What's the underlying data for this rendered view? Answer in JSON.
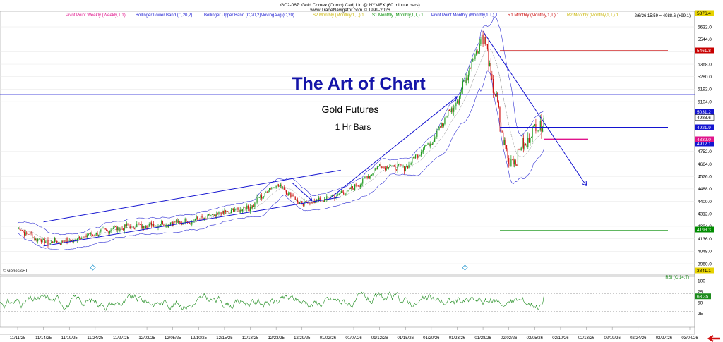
{
  "header": {
    "title_line1": "GC2-067:  Gold Comex (Comb) Cadj Liq @ NYMEX  (60 minute bars)",
    "title_line2": "www.TradeNavigator.com © 1999-2026",
    "last_bar": "2/6/26 15:59 = 4988.6 (+99.1)"
  },
  "legend": [
    {
      "label": "Pivot Point Weekly (Weekly,1,1)",
      "color": "#e0148c"
    },
    {
      "label": "Bollinger Lower Band (C,20,2)",
      "color": "#1414d0"
    },
    {
      "label": "Bollinger Upper Band (C,20,2)",
      "color": "#1414d0"
    },
    {
      "label": "MovingAvg (C,20)",
      "color": "#1414d0"
    },
    {
      "label": "S2 Monthly (Monthly,1,T,).1",
      "color": "#c8b400"
    },
    {
      "label": "S1 Monthly (Monthly,1,T,).1",
      "color": "#008c00"
    },
    {
      "label": "Pivot Point Monthly (Monthly,1,T,).1",
      "color": "#1414d0"
    },
    {
      "label": "R1 Monthly (Monthly,1,T,).1",
      "color": "#c80000"
    },
    {
      "label": "R2 Monthly (Monthly,1,T,).1",
      "color": "#c8b400"
    }
  ],
  "annotations": {
    "title": "The Art of Chart",
    "subtitle": "Gold Futures",
    "subtitle2": "1 Hr Bars",
    "brand": "© GenesisFT",
    "rsi_label": "RSI (C,14,T)"
  },
  "colors": {
    "title": "#1414a8",
    "trendline": "#1414d0",
    "r1": "#c80000",
    "s1": "#008c00",
    "s2": "#c8b400",
    "pivot_weekly": "#e0148c",
    "rsi": "#1e8c1e"
  },
  "chart_data": {
    "type": "candlestick",
    "ylim": [
      3900,
      5680
    ],
    "price_ticks": [
      3960,
      4048,
      4136,
      4224,
      4312,
      4400,
      4488,
      4576,
      4664,
      4752,
      5104,
      5192,
      5280,
      5368,
      5456,
      5544,
      5632
    ],
    "x_dates": [
      "11/11/25",
      "11/14/25",
      "11/19/25",
      "11/24/25",
      "11/27/25",
      "12/02/25",
      "12/05/25",
      "12/10/25",
      "12/15/25",
      "12/18/25",
      "12/23/25",
      "12/29/25",
      "01/02/26",
      "01/07/26",
      "01/12/26",
      "01/15/26",
      "01/20/26",
      "01/23/26",
      "01/28/26",
      "02/02/26",
      "02/05/26",
      "02/10/26",
      "02/13/26",
      "02/19/26",
      "02/24/26",
      "02/27/26",
      "03/04/26"
    ],
    "price_path": [
      [
        "11/11/25",
        4210
      ],
      [
        "11/14/25",
        4110
      ],
      [
        "11/19/25",
        4120
      ],
      [
        "11/24/25",
        4175
      ],
      [
        "11/27/25",
        4220
      ],
      [
        "12/02/25",
        4230
      ],
      [
        "12/05/25",
        4245
      ],
      [
        "12/10/25",
        4270
      ],
      [
        "12/15/25",
        4320
      ],
      [
        "12/18/25",
        4360
      ],
      [
        "12/23/25",
        4530
      ],
      [
        "12/29/25",
        4380
      ],
      [
        "01/02/26",
        4420
      ],
      [
        "01/07/26",
        4490
      ],
      [
        "01/12/26",
        4650
      ],
      [
        "01/15/26",
        4640
      ],
      [
        "01/20/26",
        4830
      ],
      [
        "01/23/26",
        5110
      ],
      [
        "01/28/26",
        5580
      ],
      [
        "02/02/26",
        4650
      ],
      [
        "02/05/26",
        4900
      ],
      [
        "02/06/26",
        4988.6
      ]
    ],
    "levels": [
      {
        "name": "R2 Monthly",
        "value": 5876.4,
        "color": "#c8b400"
      },
      {
        "name": "R1 Monthly",
        "value": 5461.8,
        "color": "#c80000"
      },
      {
        "name": "Last",
        "value": 4988.6,
        "color": "#000000"
      },
      {
        "name": "Upper Band",
        "value": 5031.2,
        "color": "#1414d0"
      },
      {
        "name": "Pivot Point Monthly",
        "value": 4921.9,
        "color": "#1414d0"
      },
      {
        "name": "MovingAvg",
        "value": 4912.1,
        "color": "#1414d0"
      },
      {
        "name": "Pivot Point Weekly",
        "value": 4839.0,
        "color": "#e0148c"
      },
      {
        "name": "S1 Monthly",
        "value": 4193.3,
        "color": "#008c00"
      },
      {
        "name": "S2 Monthly",
        "value": 3841.1,
        "color": "#c8b400"
      }
    ],
    "tag_labels": {
      "r2": "5876.4",
      "r1": "5461.8",
      "upper": "5031.2",
      "last": "4988.6",
      "pivot": "4921.9",
      "ma": "4912.1",
      "pivot_weekly": "4839.0",
      "s1": "4193.3",
      "s2": "3841.1"
    },
    "rsi": {
      "label": "RSI (C,14,T)",
      "ylim": [
        0,
        100
      ],
      "ticks": [
        25,
        50,
        75,
        100
      ],
      "overbought": 70,
      "oversold": 30,
      "last": 63.35,
      "last_label": "63.35"
    },
    "trendlines": [
      {
        "name": "channel-upper",
        "from": [
          "11/14/25",
          4255
        ],
        "to": [
          "01/05/26",
          4620
        ]
      },
      {
        "name": "channel-lower",
        "from": [
          "11/14/25",
          4085
        ],
        "to": [
          "01/05/26",
          4430
        ]
      },
      {
        "name": "rally",
        "from": [
          "01/02/26",
          4410
        ],
        "to": [
          "01/23/26",
          5140
        ]
      },
      {
        "name": "decline",
        "from": [
          "01/28/26",
          5600
        ],
        "to": [
          "02/13/26",
          4510
        ]
      },
      {
        "name": "horizontal-resistance",
        "from": [
          "11/11/25",
          5155
        ],
        "to": [
          "03/04/26",
          5155
        ]
      }
    ]
  }
}
